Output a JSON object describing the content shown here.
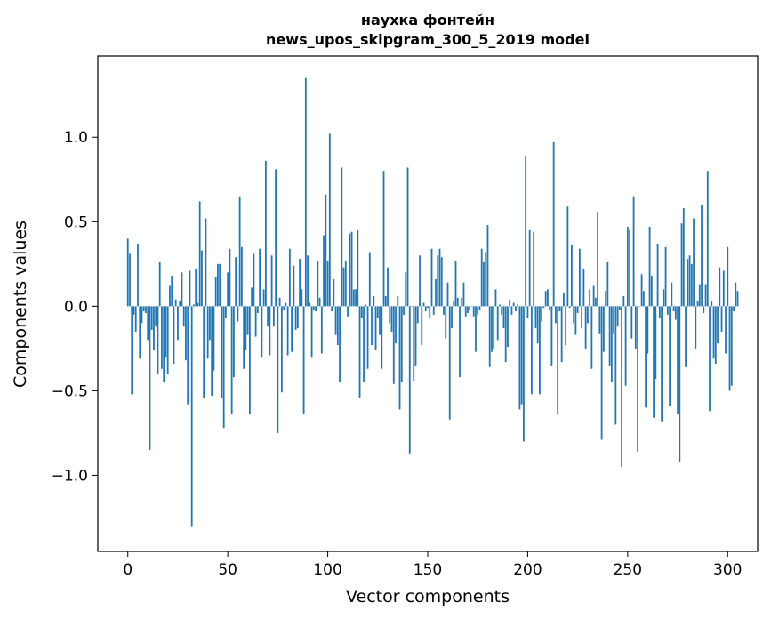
{
  "chart_data": {
    "type": "bar",
    "title": "наухка фонтейн",
    "subtitle": "news_upos_skipgram_300_5_2019 model",
    "xlabel": "Vector components",
    "ylabel": "Components values",
    "xlim": [
      -15,
      315
    ],
    "ylim": [
      -1.45,
      1.48
    ],
    "xticks": [
      0,
      50,
      100,
      150,
      200,
      250,
      300
    ],
    "xtick_labels": [
      "0",
      "50",
      "100",
      "150",
      "200",
      "250",
      "300"
    ],
    "yticks": [
      -1.0,
      -0.5,
      0.0,
      0.5,
      1.0
    ],
    "ytick_labels": [
      "−1.0",
      "−0.5",
      "0.0",
      "0.5",
      "1.0"
    ],
    "bar_color": "#1f77b4",
    "grid": false,
    "values": [
      0.4,
      0.31,
      -0.52,
      -0.05,
      -0.15,
      0.37,
      -0.31,
      -0.1,
      -0.03,
      -0.04,
      -0.2,
      -0.85,
      -0.14,
      -0.26,
      -0.12,
      -0.4,
      0.26,
      -0.37,
      -0.45,
      -0.3,
      -0.4,
      0.12,
      0.18,
      -0.34,
      0.04,
      -0.2,
      0.03,
      0.2,
      -0.12,
      -0.32,
      -0.58,
      0.21,
      -1.3,
      0.01,
      0.22,
      0.02,
      0.62,
      0.33,
      -0.54,
      0.52,
      -0.31,
      -0.2,
      -0.53,
      -0.38,
      0.17,
      0.25,
      0.25,
      -0.54,
      -0.72,
      -0.07,
      0.2,
      0.34,
      -0.64,
      -0.42,
      0.29,
      -0.09,
      0.65,
      0.35,
      -0.37,
      -0.26,
      -0.17,
      -0.64,
      0.11,
      0.31,
      -0.18,
      -0.04,
      0.34,
      -0.3,
      0.1,
      0.86,
      -0.12,
      -0.29,
      0.3,
      -0.12,
      0.81,
      -0.75,
      0.05,
      -0.51,
      -0.02,
      0.02,
      -0.29,
      0.34,
      -0.27,
      0.24,
      -0.14,
      -0.13,
      0.28,
      0.1,
      -0.64,
      1.35,
      0.3,
      0.02,
      -0.3,
      -0.02,
      -0.03,
      0.27,
      0.05,
      -0.28,
      0.42,
      0.66,
      0.27,
      1.02,
      -0.03,
      0.16,
      -0.17,
      -0.23,
      -0.45,
      0.82,
      0.23,
      0.27,
      -0.06,
      0.43,
      0.44,
      0.1,
      0.1,
      0.45,
      -0.54,
      -0.07,
      -0.45,
      0.01,
      -0.37,
      0.32,
      -0.23,
      0.06,
      -0.26,
      -0.07,
      -0.17,
      -0.37,
      0.8,
      0.06,
      0.23,
      -0.1,
      -0.15,
      -0.46,
      -0.22,
      0.06,
      -0.61,
      -0.45,
      -0.05,
      0.2,
      0.82,
      -0.87,
      0.0,
      -0.44,
      -0.35,
      -0.1,
      0.3,
      -0.23,
      0.02,
      -0.03,
      -0.01,
      -0.07,
      0.34,
      -0.05,
      0.16,
      0.3,
      0.34,
      0.29,
      -0.05,
      -0.19,
      0.14,
      -0.67,
      -0.13,
      0.03,
      0.27,
      0.05,
      -0.42,
      0.05,
      0.14,
      -0.06,
      -0.04,
      -0.02,
      0.0,
      -0.06,
      -0.27,
      -0.05,
      -0.02,
      0.34,
      0.26,
      0.32,
      0.48,
      -0.36,
      -0.27,
      -0.25,
      0.1,
      -0.2,
      0.01,
      -0.05,
      -0.13,
      -0.33,
      -0.24,
      0.04,
      -0.05,
      0.02,
      -0.03,
      0.01,
      -0.61,
      -0.58,
      -0.8,
      0.89,
      -0.07,
      0.45,
      -0.52,
      0.44,
      -0.13,
      -0.22,
      -0.52,
      -0.09,
      -0.01,
      0.09,
      0.1,
      -0.02,
      -0.35,
      0.97,
      -0.1,
      -0.64,
      -0.03,
      -0.33,
      0.08,
      -0.23,
      0.59,
      -0.01,
      0.36,
      -0.1,
      -0.17,
      -0.04,
      0.34,
      -0.13,
      0.22,
      -0.25,
      -0.1,
      0.1,
      -0.37,
      0.12,
      0.05,
      0.56,
      -0.16,
      -0.79,
      -0.27,
      0.09,
      0.26,
      -0.35,
      -0.45,
      -0.16,
      -0.7,
      -0.12,
      -0.02,
      -0.95,
      0.06,
      -0.47,
      0.47,
      0.45,
      -0.19,
      0.65,
      -0.25,
      -0.86,
      0.0,
      0.19,
      0.09,
      -0.6,
      -0.28,
      0.47,
      0.18,
      -0.66,
      -0.43,
      0.37,
      -0.07,
      -0.68,
      0.1,
      0.35,
      -0.05,
      -0.59,
      0.14,
      -0.03,
      -0.08,
      -0.64,
      -0.92,
      0.49,
      0.58,
      -0.36,
      0.28,
      0.3,
      0.25,
      0.52,
      -0.25,
      0.03,
      0.13,
      0.6,
      -0.04,
      0.13,
      0.8,
      -0.62,
      0.03,
      -0.31,
      -0.34,
      -0.22,
      0.23,
      -0.15,
      0.21,
      -0.28,
      0.35,
      -0.5,
      -0.47,
      -0.03,
      0.14,
      0.09
    ]
  }
}
